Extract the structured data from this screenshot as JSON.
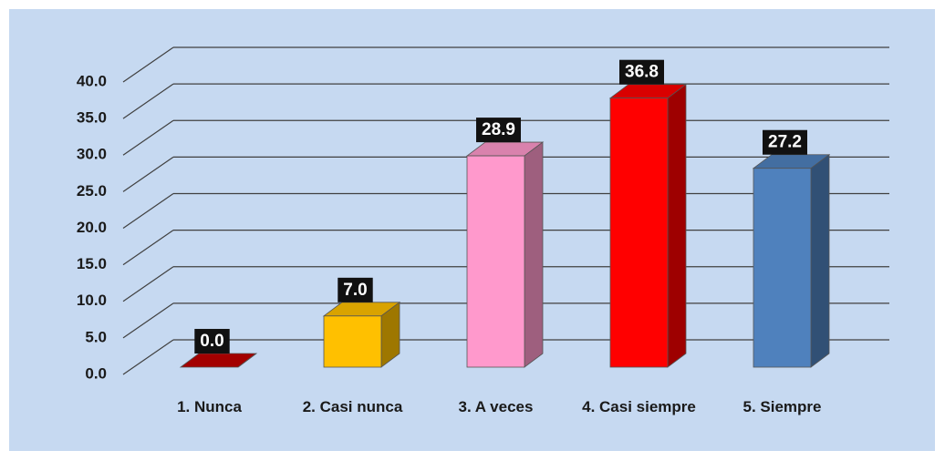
{
  "chart_data": {
    "type": "bar3d",
    "categories": [
      "1. Nunca",
      "2. Casi nunca",
      "3. A veces",
      "4. Casi siempre",
      "5. Siempre"
    ],
    "values": [
      0.0,
      7.0,
      28.9,
      36.8,
      27.2
    ],
    "value_labels": [
      "0.0",
      "7.0",
      "28.9",
      "36.8",
      "27.2"
    ],
    "colors": [
      "#c00000",
      "#ffc000",
      "#ff99cc",
      "#ff0000",
      "#4f81bd"
    ],
    "ylim": [
      0,
      40
    ],
    "yticks": [
      {
        "value": 0,
        "label": "0.0"
      },
      {
        "value": 5,
        "label": "5.0"
      },
      {
        "value": 10,
        "label": "10.0"
      },
      {
        "value": 15,
        "label": "15.0"
      },
      {
        "value": 20,
        "label": "20.0"
      },
      {
        "value": 25,
        "label": "25.0"
      },
      {
        "value": 30,
        "label": "30.0"
      },
      {
        "value": 35,
        "label": "35.0"
      },
      {
        "value": 40,
        "label": "40.0"
      }
    ],
    "grid": true
  }
}
